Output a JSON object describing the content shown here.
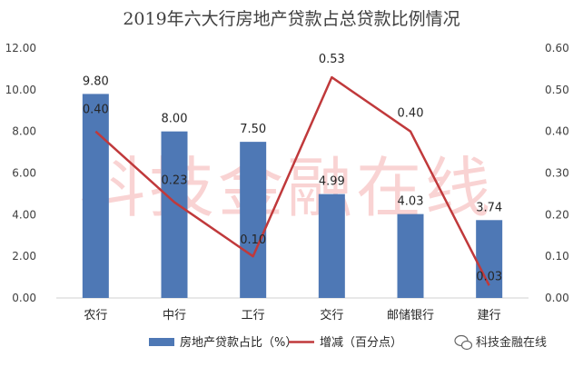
{
  "chart_data": {
    "type": "bar",
    "title": "2019年六大行房地产贷款占总贷款比例情况",
    "categories": [
      "农行",
      "中行",
      "工行",
      "交行",
      "邮储银行",
      "建行"
    ],
    "series": [
      {
        "name": "房地产贷款占比（%）",
        "type": "bar",
        "axis": "left",
        "color": "#4e78b5",
        "values": [
          9.8,
          8.0,
          7.5,
          4.99,
          4.03,
          3.74
        ],
        "labels": [
          "9.80",
          "8.00",
          "7.50",
          "4.99",
          "4.03",
          "3.74"
        ]
      },
      {
        "name": "增减（百分点）",
        "type": "line",
        "axis": "right",
        "color": "#c0393b",
        "values": [
          0.4,
          0.23,
          0.1,
          0.53,
          0.4,
          0.03
        ],
        "labels": [
          "0.40",
          "0.23",
          "0.10",
          "0.53",
          "0.40",
          "0.03"
        ]
      }
    ],
    "y_left": {
      "ylim": [
        0,
        12
      ],
      "ticks": [
        "0.00",
        "2.00",
        "4.00",
        "6.00",
        "8.00",
        "10.00",
        "12.00"
      ]
    },
    "y_right": {
      "ylim": [
        0,
        0.6
      ],
      "ticks": [
        "0.00",
        "0.10",
        "0.20",
        "0.30",
        "0.40",
        "0.50",
        "0.60"
      ]
    },
    "grid": false,
    "legend_position": "bottom"
  },
  "watermark": "科技金融在线",
  "brand": {
    "text": "科技金融在线",
    "icon": "wechat-icon"
  }
}
